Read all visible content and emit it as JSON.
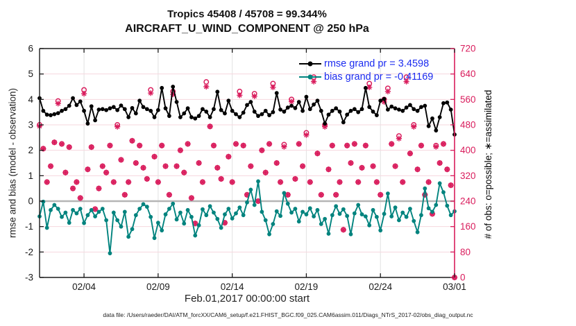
{
  "header": {
    "title": "Tropics 45408 / 45708 = 99.344%",
    "subtitle": "AIRCRAFT_U_WIND_COMPONENT @ 250 hPa"
  },
  "legend": {
    "rmse_label": "rmse grand pr = 3.4598",
    "bias_label": "bias grand pr = -0.41169",
    "text_color": "#1b2bf0"
  },
  "footer": {
    "data_file_note": "data file: /Users/raeder/DAI/ATM_forcXX/CAM6_setup/f.e21.FHIST_BGC.f09_025.CAM6assim.011/Diags_NTrS_2017-02/obs_diag_output.nc"
  },
  "colors": {
    "rmse": "#000000",
    "bias": "#00837e",
    "obs_counts": "#d91c5c",
    "grid_horizontal": "#f6d7de",
    "grid_vertical": "#e2e2e2",
    "zero_line": "#b5b5b5",
    "axis_left_bottom_top": "#1a1a1a",
    "axis_right": "#d91c5c"
  },
  "chart_data": {
    "type": "line",
    "title": "Tropics 45408 / 45708 = 99.344%",
    "subtitle": "AIRCRAFT_U_WIND_COMPONENT @ 250 hPa",
    "xlabel": "Feb.01,2017 00:00:00 start",
    "ylabel_left": "rmse and bias (model - observation)",
    "ylabel_right": "# of obs: o=possible; ∗=assimilated",
    "x_start": "2017-02-01 00:00:00",
    "x_step_hours": 6,
    "n_points": 113,
    "xticks": [
      {
        "pos": 12,
        "label": "02/04"
      },
      {
        "pos": 32,
        "label": "02/09"
      },
      {
        "pos": 52,
        "label": "02/14"
      },
      {
        "pos": 72,
        "label": "02/19"
      },
      {
        "pos": 92,
        "label": "02/24"
      },
      {
        "pos": 112,
        "label": "03/01"
      }
    ],
    "ylim_left": [
      -3,
      6
    ],
    "yticks_left": [
      -3,
      -2,
      -1,
      0,
      1,
      2,
      3,
      4,
      5,
      6
    ],
    "ylim_right": [
      0,
      720
    ],
    "yticks_right": [
      0,
      80,
      160,
      240,
      320,
      400,
      480,
      560,
      640,
      720
    ],
    "grid": true,
    "legend_position": "top-right-inside",
    "annotations": {
      "zero_reference_line": 0,
      "rmse_grand_mean": 3.4598,
      "bias_grand_mean": -0.41169,
      "possible_total": 45708,
      "assimilated_total": 45408,
      "assimilated_percent": 99.344
    },
    "series": [
      {
        "name": "rmse",
        "axis": "left",
        "style": "line-marker",
        "marker": "filled-circle",
        "color": "#000000",
        "values": [
          4.05,
          3.55,
          3.4,
          3.38,
          3.42,
          3.46,
          3.55,
          3.62,
          3.75,
          4.05,
          3.78,
          3.92,
          3.55,
          3.05,
          3.73,
          3.18,
          3.6,
          3.62,
          3.58,
          3.65,
          3.7,
          3.58,
          3.76,
          3.62,
          3.3,
          3.66,
          3.45,
          3.95,
          3.7,
          3.62,
          3.55,
          3.3,
          3.58,
          4.45,
          3.65,
          3.35,
          4.5,
          3.9,
          3.3,
          3.45,
          3.65,
          3.3,
          3.25,
          3.35,
          3.62,
          3.52,
          3.3,
          3.62,
          4.3,
          3.58,
          3.45,
          3.95,
          3.55,
          3.42,
          3.3,
          3.48,
          3.78,
          3.9,
          3.52,
          3.35,
          3.42,
          3.55,
          3.38,
          3.5,
          4.25,
          3.6,
          3.52,
          3.68,
          3.75,
          3.66,
          3.9,
          3.55,
          4.1,
          3.62,
          3.8,
          3.95,
          3.55,
          3.05,
          3.4,
          3.55,
          3.65,
          3.52,
          3.1,
          3.4,
          3.55,
          3.62,
          3.5,
          3.62,
          4.45,
          3.7,
          3.52,
          3.38,
          3.95,
          4.02,
          3.6,
          3.72,
          3.65,
          3.6,
          3.55,
          3.68,
          3.78,
          3.62,
          3.55,
          3.7,
          3.75,
          2.95,
          3.25,
          2.78,
          3.3,
          3.85,
          3.88,
          3.6,
          2.62
        ]
      },
      {
        "name": "bias",
        "axis": "left",
        "style": "line-marker",
        "marker": "filled-circle",
        "color": "#00837e",
        "values": [
          -0.6,
          -0.02,
          -1.05,
          -0.35,
          -0.15,
          -0.3,
          -0.62,
          -0.45,
          -0.85,
          -0.35,
          -0.48,
          -0.3,
          -0.86,
          -0.55,
          -0.35,
          -0.6,
          -0.42,
          -0.3,
          -0.75,
          -2.05,
          -0.45,
          -0.75,
          -1.0,
          -0.42,
          -1.4,
          -1.1,
          -0.55,
          -0.3,
          -0.12,
          -0.22,
          -0.62,
          -1.45,
          -0.85,
          -1.15,
          -0.52,
          -0.3,
          -0.1,
          -0.72,
          -0.45,
          -0.88,
          -0.35,
          -0.62,
          -1.35,
          -0.95,
          -0.32,
          -0.55,
          -0.2,
          -0.45,
          -0.7,
          -1.05,
          -0.52,
          -0.3,
          -0.68,
          -0.48,
          -0.25,
          -0.55,
          -0.05,
          0.45,
          -0.15,
          0.78,
          -0.42,
          -0.75,
          -1.3,
          -0.9,
          -0.4,
          -0.58,
          0.32,
          -0.1,
          -0.45,
          -0.3,
          -0.8,
          -0.42,
          -0.52,
          -0.28,
          -0.6,
          -0.35,
          -0.9,
          -0.7,
          -1.28,
          -0.55,
          -0.2,
          -0.5,
          -0.32,
          -0.58,
          -1.3,
          -0.48,
          -0.15,
          -0.52,
          -0.6,
          -0.95,
          -0.35,
          -0.62,
          -1.15,
          -0.5,
          0.3,
          -0.6,
          -0.25,
          -0.75,
          -0.45,
          -0.62,
          -0.3,
          -0.78,
          -1.22,
          -0.55,
          0.5,
          -0.28,
          -0.42,
          -0.15,
          0.7,
          0.35,
          -0.18,
          -0.55,
          -0.4
        ]
      },
      {
        "name": "possible_obs",
        "axis": "right",
        "style": "scatter",
        "marker": "open-circle",
        "color": "#d91c5c",
        "values": [
          480,
          405,
          300,
          350,
          425,
          555,
          420,
          330,
          410,
          280,
          300,
          250,
          590,
          340,
          410,
          215,
          280,
          350,
          330,
          415,
          300,
          480,
          370,
          260,
          300,
          430,
          360,
          415,
          345,
          310,
          590,
          380,
          300,
          415,
          350,
          260,
          585,
          350,
          400,
          330,
          420,
          250,
          170,
          360,
          300,
          615,
          475,
          415,
          345,
          310,
          172,
          380,
          300,
          420,
          585,
          415,
          260,
          350,
          578,
          240,
          400,
          330,
          420,
          610,
          360,
          300,
          418,
          260,
          560,
          310,
          420,
          350,
          455,
          300,
          630,
          390,
          260,
          480,
          340,
          415,
          260,
          300,
          150,
          415,
          360,
          420,
          300,
          345,
          415,
          610,
          350,
          300,
          260,
          560,
          595,
          420,
          350,
          445,
          300,
          630,
          390,
          480,
          340,
          415,
          260,
          300,
          200,
          415,
          360,
          420,
          340,
          290,
          0
        ]
      },
      {
        "name": "assimilated_obs",
        "axis": "right",
        "style": "scatter",
        "marker": "asterisk",
        "color": "#d91c5c",
        "values": [
          476,
          405,
          300,
          350,
          425,
          547,
          420,
          330,
          410,
          280,
          300,
          250,
          578,
          340,
          410,
          215,
          280,
          350,
          330,
          415,
          300,
          474,
          370,
          260,
          300,
          430,
          360,
          415,
          345,
          310,
          580,
          380,
          300,
          415,
          350,
          260,
          576,
          350,
          400,
          330,
          420,
          250,
          170,
          360,
          300,
          600,
          475,
          415,
          345,
          310,
          172,
          380,
          300,
          420,
          573,
          415,
          260,
          350,
          570,
          240,
          400,
          330,
          420,
          598,
          360,
          300,
          411,
          260,
          553,
          310,
          420,
          350,
          448,
          300,
          616,
          390,
          260,
          474,
          340,
          415,
          260,
          300,
          150,
          415,
          360,
          420,
          300,
          345,
          415,
          598,
          350,
          300,
          260,
          552,
          585,
          420,
          350,
          437,
          300,
          616,
          390,
          474,
          340,
          415,
          260,
          300,
          200,
          411,
          360,
          420,
          340,
          290,
          0
        ]
      }
    ]
  }
}
